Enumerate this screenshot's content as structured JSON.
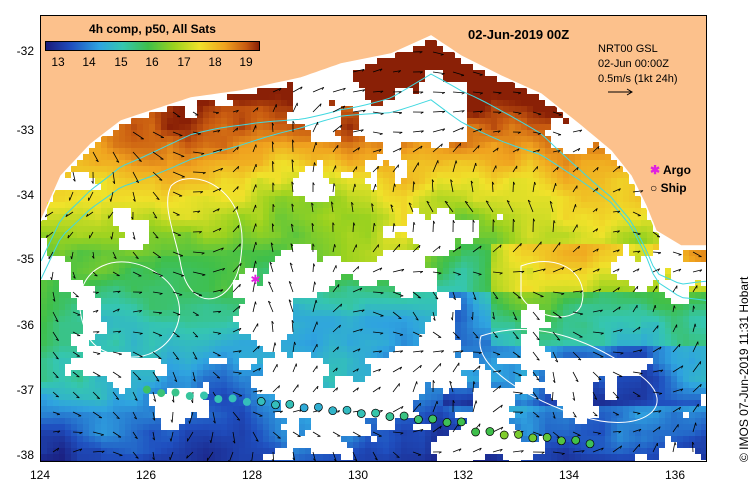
{
  "map": {
    "composite_label": "4h comp, p50, All Sats",
    "date_title": "02-Jun-2019 00Z",
    "product": "NRT00 GSL",
    "valid_time": "02-Jun 00:00Z",
    "current_scale_label": "0.5m/s (1kt 24h)",
    "argo_label": "Argo",
    "ship_label": "Ship",
    "credit": "© IMOS 07-Jun-2019 11:31 Hobart",
    "colorbar_ticks": [
      "13",
      "14",
      "15",
      "16",
      "17",
      "18",
      "19"
    ],
    "lat_ticks": [
      "-32",
      "-33",
      "-34",
      "-35",
      "-36",
      "-37",
      "-38"
    ],
    "lon_ticks": [
      "124",
      "126",
      "128",
      "130",
      "132",
      "134",
      "136"
    ],
    "extent": {
      "lon_min": 124,
      "lon_max": 136.6,
      "lat_max": -31.4,
      "lat_min": -38.1
    },
    "sst_range_degC": [
      12.5,
      19.5
    ],
    "colors": {
      "land": "#fcc18c",
      "coast": "#ffffff",
      "argo": "#e020e0",
      "current_arrow": "#000000",
      "contour": "#40d8e0"
    },
    "argo_float": {
      "lon": 128.05,
      "lat": -35.35
    }
  }
}
